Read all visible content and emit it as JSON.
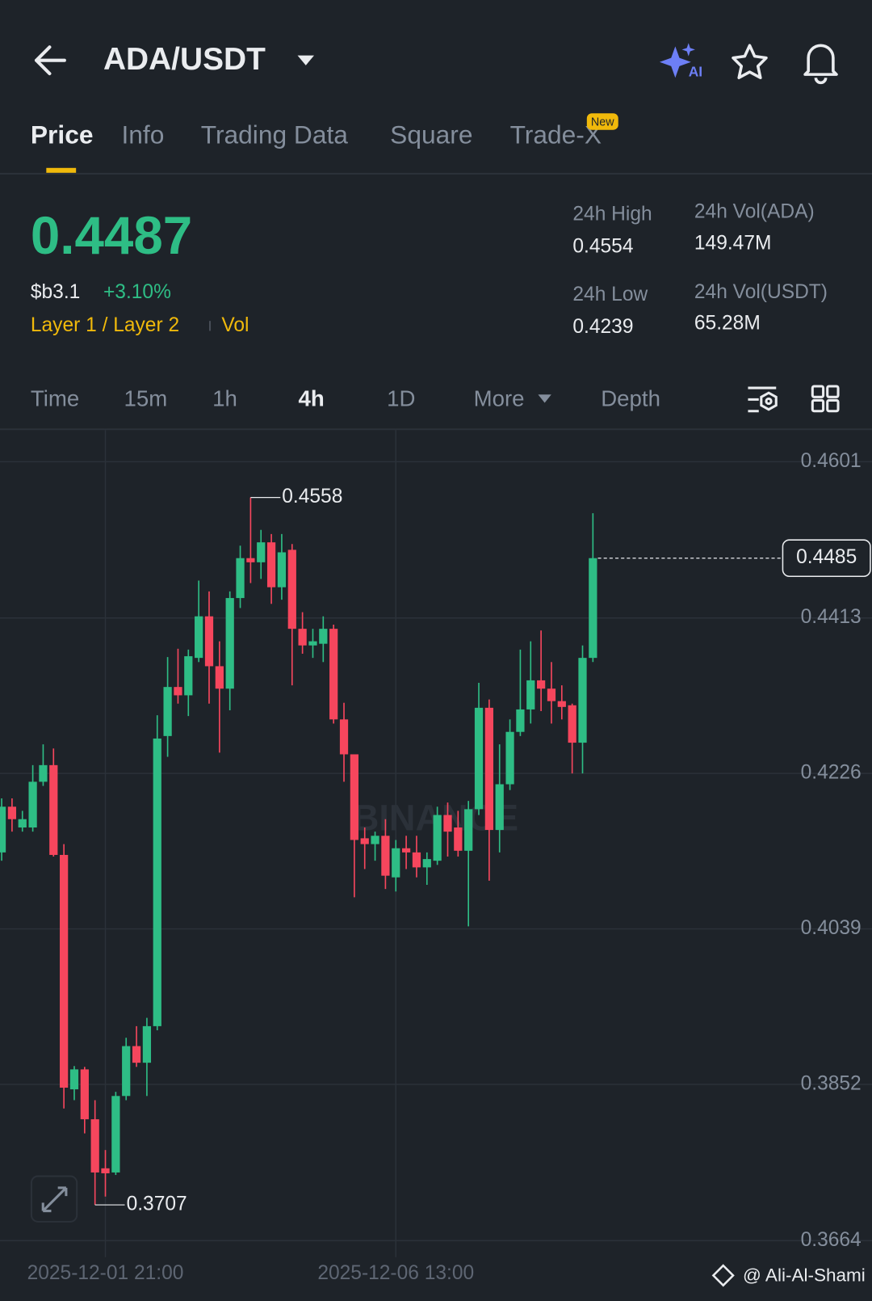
{
  "header": {
    "pair": "ADA/USDT"
  },
  "tabs": [
    "Price",
    "Info",
    "Trading Data",
    "Square",
    "Trade-X"
  ],
  "tab_badge": "New",
  "ticker": {
    "price": "0.4487",
    "fiat": "$b3.1",
    "change": "+3.10%",
    "tags": [
      "Layer 1 / Layer 2",
      "Vol"
    ]
  },
  "stats": [
    {
      "label": "24h High",
      "value": "0.4554"
    },
    {
      "label": "24h Vol(ADA)",
      "value": "149.47M"
    },
    {
      "label": "24h Low",
      "value": "0.4239"
    },
    {
      "label": "24h Vol(USDT)",
      "value": "65.28M"
    }
  ],
  "intervals": [
    "Time",
    "15m",
    "1h",
    "4h",
    "1D",
    "More",
    "Depth"
  ],
  "chart_data": {
    "type": "candlestick",
    "categories": [
      null,
      null,
      null,
      null,
      null,
      null,
      null,
      null,
      null,
      null,
      "2025-12-01 21:00",
      null,
      null,
      null,
      null,
      null,
      null,
      null,
      null,
      null,
      null,
      null,
      null,
      null,
      null,
      null,
      null,
      null,
      null,
      null,
      null,
      null,
      null,
      null,
      null,
      null,
      null,
      null,
      "2025-12-06 13:00",
      null,
      null,
      null,
      null,
      null,
      null,
      null,
      null,
      null,
      null,
      null,
      null,
      null,
      null,
      null,
      null,
      null,
      null,
      null
    ],
    "open": [
      0.4131,
      0.4186,
      0.4161,
      0.4161,
      0.4216,
      0.4236,
      0.4128,
      0.3846,
      0.387,
      0.381,
      0.3751,
      0.3746,
      0.3838,
      0.3898,
      0.3878,
      0.3922,
      0.4271,
      0.433,
      0.432,
      0.4365,
      0.4415,
      0.4355,
      0.4328,
      0.4437,
      0.4485,
      0.448,
      0.4504,
      0.445,
      0.4495,
      0.44,
      0.438,
      0.4382,
      0.44,
      0.4291,
      0.4249,
      0.4148,
      0.4141,
      0.4151,
      0.4101,
      0.4136,
      0.4131,
      0.4113,
      0.4121,
      0.4176,
      0.4161,
      0.4133,
      0.4183,
      0.4305,
      0.4158,
      0.4213,
      0.4276,
      0.4303,
      0.4338,
      0.4328,
      0.4313,
      0.4308,
      0.4263,
      0.4365
    ],
    "high": [
      0.4196,
      0.4196,
      0.4181,
      0.4236,
      0.4261,
      0.4256,
      0.4141,
      0.3874,
      0.3873,
      0.3833,
      0.3773,
      0.3843,
      0.3908,
      0.3922,
      0.3932,
      0.4296,
      0.4366,
      0.4376,
      0.4375,
      0.4458,
      0.4445,
      0.4385,
      0.4445,
      0.45,
      0.4558,
      0.4519,
      0.4514,
      0.4514,
      0.4502,
      0.442,
      0.44,
      0.4415,
      0.4405,
      0.4311,
      0.4249,
      0.4161,
      0.4156,
      0.4171,
      0.4146,
      0.4151,
      0.4151,
      0.4131,
      0.4186,
      0.4191,
      0.4181,
      0.4193,
      0.4335,
      0.4315,
      0.4261,
      0.4291,
      0.4375,
      0.4385,
      0.4398,
      0.436,
      0.4332,
      0.431,
      0.438,
      0.4539
    ],
    "low": [
      0.4121,
      0.4156,
      0.4156,
      0.4156,
      0.4211,
      0.4126,
      0.3823,
      0.3833,
      0.3793,
      0.3707,
      0.3717,
      0.3743,
      0.3833,
      0.3873,
      0.3838,
      0.3917,
      0.4246,
      0.431,
      0.4295,
      0.436,
      0.431,
      0.4251,
      0.4302,
      0.4425,
      0.4455,
      0.446,
      0.443,
      0.4435,
      0.4332,
      0.437,
      0.4365,
      0.436,
      0.4286,
      0.4216,
      0.4077,
      0.4111,
      0.4121,
      0.4087,
      0.4084,
      0.4111,
      0.4101,
      0.4092,
      0.4116,
      0.4126,
      0.4126,
      0.4042,
      0.4176,
      0.4097,
      0.4131,
      0.4206,
      0.4271,
      0.4286,
      0.4301,
      0.4286,
      0.4291,
      0.4226,
      0.4226,
      0.436
    ],
    "close": [
      0.4186,
      0.4171,
      0.4171,
      0.4216,
      0.4236,
      0.4128,
      0.3848,
      0.387,
      0.381,
      0.3746,
      0.3745,
      0.3838,
      0.3898,
      0.3878,
      0.3922,
      0.4268,
      0.433,
      0.432,
      0.4367,
      0.4415,
      0.4355,
      0.4328,
      0.4437,
      0.4485,
      0.448,
      0.4504,
      0.445,
      0.4492,
      0.44,
      0.438,
      0.4385,
      0.44,
      0.4291,
      0.4249,
      0.4146,
      0.4141,
      0.4151,
      0.4103,
      0.4136,
      0.4131,
      0.4113,
      0.4123,
      0.4176,
      0.4156,
      0.4133,
      0.4183,
      0.4305,
      0.4158,
      0.4213,
      0.4276,
      0.4303,
      0.4338,
      0.4328,
      0.4313,
      0.4306,
      0.4263,
      0.4365,
      0.4485
    ],
    "up_color": "#2ebd85",
    "down_color": "#f6465d",
    "ylim": [
      0.3644,
      0.4639
    ],
    "yticks": [
      0.4601,
      0.4413,
      0.4226,
      0.4039,
      0.3852,
      0.3664
    ],
    "grid": true,
    "high_label": 0.4558,
    "low_label": 0.3707,
    "last_price": 0.4485
  },
  "watermark": "BINANCE",
  "footer": "@ Ali-Al-Shami"
}
